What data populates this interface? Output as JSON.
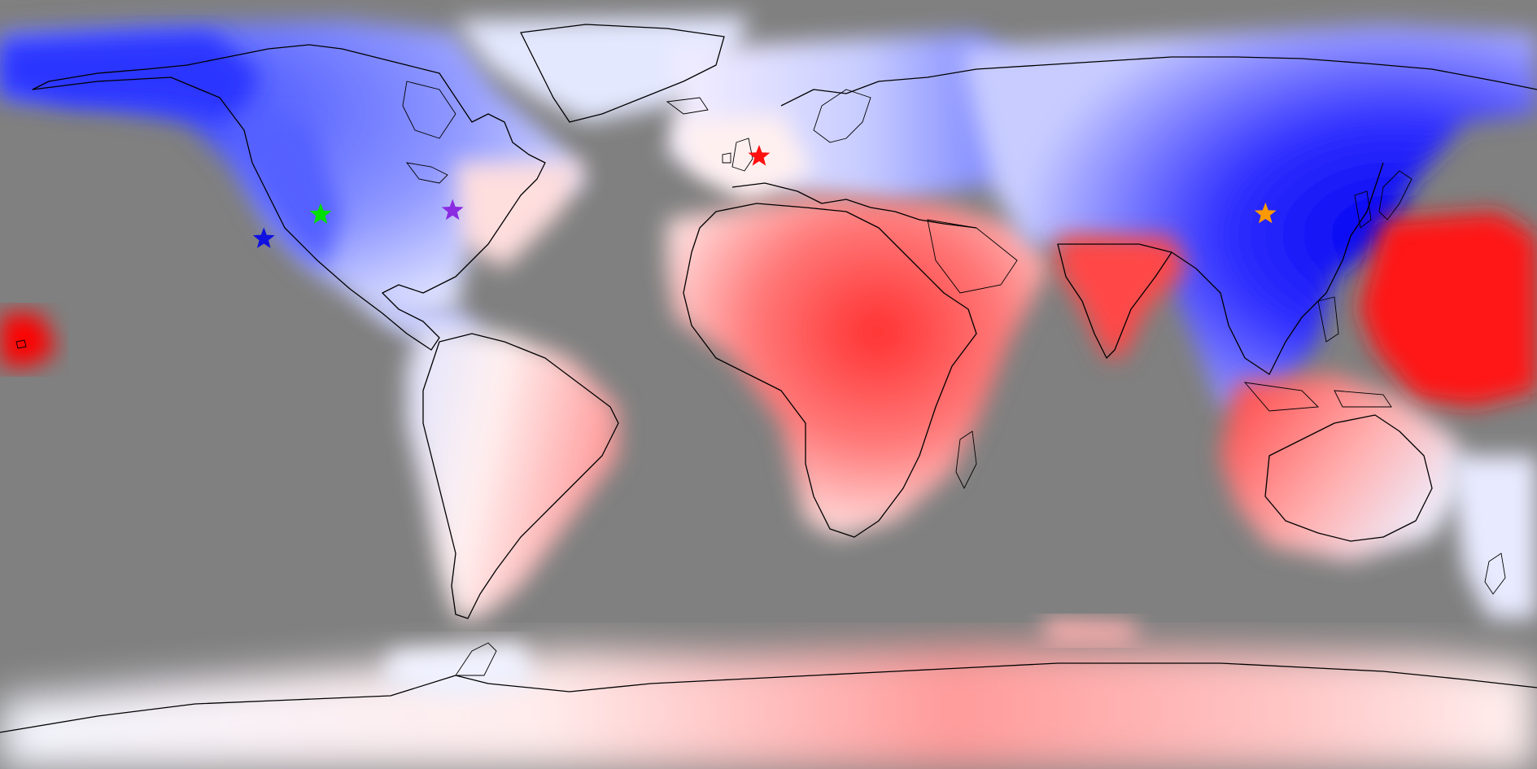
{
  "map": {
    "projection": "equirectangular",
    "colors": {
      "ocean": "#808080",
      "cold_strong": "#0000ff",
      "cold_weak": "#e8ecff",
      "warm_weak": "#ffe8e8",
      "warm_strong": "#ff0000",
      "coastline": "#000000"
    },
    "markers": [
      {
        "name": "blue-star-marker",
        "color": "#1010e0",
        "lon": -118.2,
        "lat": 34.1
      },
      {
        "name": "green-star-marker",
        "color": "#00e000",
        "lon": -104.9,
        "lat": 39.8
      },
      {
        "name": "purple-star-marker",
        "color": "#8a2be2",
        "lon": -74.0,
        "lat": 40.7
      },
      {
        "name": "red-star-marker",
        "color": "#ff1010",
        "lon": -2.2,
        "lat": 53.4
      },
      {
        "name": "orange-star-marker",
        "color": "#ff9900",
        "lon": 116.4,
        "lat": 39.9
      }
    ]
  }
}
